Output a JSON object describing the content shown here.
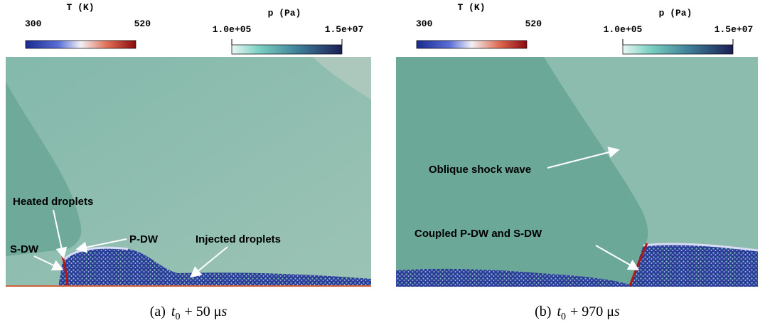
{
  "panels": [
    {
      "colorbars": [
        {
          "title": "T (K)",
          "min": "300",
          "max": "520"
        },
        {
          "title": "p (Pa)",
          "min": "1.0e+05",
          "max": "1.5e+07"
        }
      ],
      "annotations": [
        "Heated droplets",
        "S-DW",
        "P-DW",
        "Injected droplets"
      ],
      "caption": {
        "label": "(a)",
        "var": "t",
        "sub": "0",
        "rest": "+ 50 μ",
        "unit": "s"
      }
    },
    {
      "colorbars": [
        {
          "title": "T (K)",
          "min": "300",
          "max": "520"
        },
        {
          "title": "p (Pa)",
          "min": "1.0e+05",
          "max": "1.5e+07"
        }
      ],
      "annotations": [
        "Oblique shock wave",
        "Coupled P-DW and S-DW"
      ],
      "caption": {
        "label": "(b)",
        "var": "t",
        "sub": "0",
        "rest": "+ 970 μ",
        "unit": "s"
      }
    }
  ]
}
